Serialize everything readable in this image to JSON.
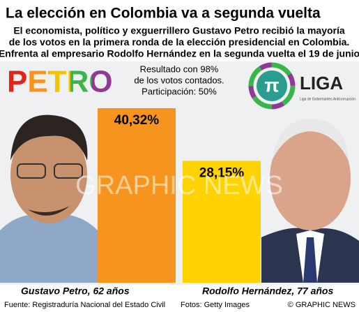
{
  "chart_data": {
    "type": "bar",
    "title": "La elección en Colombia va a segunda vuelta",
    "subtitle": [
      "El economista, político y exguerrillero Gustavo Petro recibió la mayoría",
      "de los votos en la primera ronda de la elección presidencial en Colombia.",
      "Enfrenta al empresario Rodolfo Hernández en la segunda vuelta el 19 de junio"
    ],
    "annotation": [
      "Resultado con 98%",
      "de los votos contados.",
      "Participación: 50%"
    ],
    "categories": [
      "Gustavo Petro, 62 años",
      "Rodolfo Hernández, 77 años"
    ],
    "values": [
      40.32,
      28.15
    ],
    "value_labels": [
      "40,32%",
      "28,15%"
    ],
    "colors": [
      "#f7941d",
      "#ffd200"
    ],
    "ylim": [
      0,
      45
    ],
    "logos": {
      "left": "PETRO",
      "right": "LIGA",
      "right_symbol": "π",
      "right_caption": "Liga de Gobernantes Anticorrupción"
    },
    "watermark": "GRAPHIC NEWS",
    "source": "Fuente: Registraduría Nacional del Estado Civil",
    "photos": "Fotos: Getty Images",
    "credit": "© GRAPHIC NEWS"
  }
}
